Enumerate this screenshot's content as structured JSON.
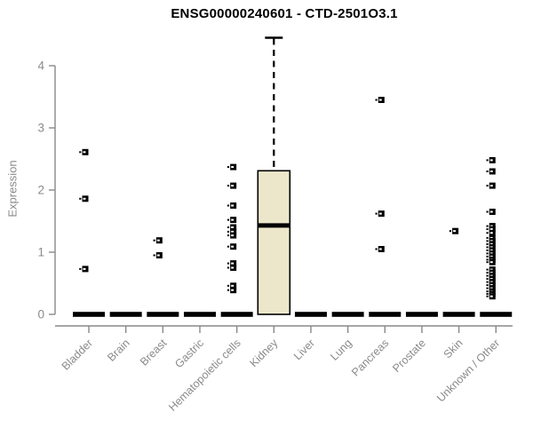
{
  "chart": {
    "title": "ENSG00000240601 - CTD-2501O3.1",
    "ylabel": "Expression"
  },
  "chart_data": {
    "type": "boxplot",
    "title": "ENSG00000240601 - CTD-2501O3.1",
    "xlabel": "",
    "ylabel": "Expression",
    "ylim": [
      0,
      4.6
    ],
    "yticks": [
      0,
      1,
      2,
      3,
      4
    ],
    "grid": false,
    "legend": false,
    "categories": [
      "Bladder",
      "Brain",
      "Breast",
      "Gastric",
      "Hematopoietic cells",
      "Kidney",
      "Liver",
      "Lung",
      "Pancreas",
      "Prostate",
      "Skin",
      "Unknown / Other"
    ],
    "series": [
      {
        "name": "Bladder",
        "q1": 0,
        "median": 0,
        "q3": 0,
        "whisker_low": 0,
        "whisker_high": 0,
        "outliers": [
          2.61,
          1.86,
          0.73
        ]
      },
      {
        "name": "Brain",
        "q1": 0,
        "median": 0,
        "q3": 0,
        "whisker_low": 0,
        "whisker_high": 0,
        "outliers": []
      },
      {
        "name": "Breast",
        "q1": 0,
        "median": 0,
        "q3": 0,
        "whisker_low": 0,
        "whisker_high": 0,
        "outliers": [
          1.19,
          0.95
        ]
      },
      {
        "name": "Gastric",
        "q1": 0,
        "median": 0,
        "q3": 0,
        "whisker_low": 0,
        "whisker_high": 0,
        "outliers": []
      },
      {
        "name": "Hematopoietic cells",
        "q1": 0,
        "median": 0,
        "q3": 0,
        "whisker_low": 0,
        "whisker_high": 0,
        "outliers": [
          2.37,
          2.07,
          1.75,
          1.52,
          1.4,
          1.33,
          1.27,
          1.09,
          0.82,
          0.75,
          0.46,
          0.39
        ]
      },
      {
        "name": "Kidney",
        "q1": 0,
        "median": 1.43,
        "q3": 2.31,
        "whisker_low": 0,
        "whisker_high": 4.45,
        "outliers": []
      },
      {
        "name": "Liver",
        "q1": 0,
        "median": 0,
        "q3": 0,
        "whisker_low": 0,
        "whisker_high": 0,
        "outliers": []
      },
      {
        "name": "Lung",
        "q1": 0,
        "median": 0,
        "q3": 0,
        "whisker_low": 0,
        "whisker_high": 0,
        "outliers": []
      },
      {
        "name": "Pancreas",
        "q1": 0,
        "median": 0,
        "q3": 0,
        "whisker_low": 0,
        "whisker_high": 0,
        "outliers": [
          3.45,
          1.62,
          1.05
        ]
      },
      {
        "name": "Prostate",
        "q1": 0,
        "median": 0,
        "q3": 0,
        "whisker_low": 0,
        "whisker_high": 0,
        "outliers": []
      },
      {
        "name": "Skin",
        "q1": 0,
        "median": 0,
        "q3": 0,
        "whisker_low": 0,
        "whisker_high": 0,
        "outliers": [
          1.34
        ]
      },
      {
        "name": "Unknown / Other",
        "q1": 0,
        "median": 0,
        "q3": 0,
        "whisker_low": 0,
        "whisker_high": 0,
        "outliers": [
          2.48,
          2.3,
          2.07,
          1.65,
          1.42,
          1.37,
          1.31,
          1.23,
          1.18,
          1.13,
          1.08,
          1.03,
          0.98,
          0.93,
          0.88,
          0.84,
          0.72,
          0.67,
          0.62,
          0.57,
          0.52,
          0.47,
          0.42,
          0.37,
          0.33,
          0.29
        ]
      }
    ],
    "colors": {
      "box_fill": "#ece7cb",
      "box_stroke": "#000000",
      "median": "#000000",
      "whisker": "#000000",
      "point": "#000000",
      "axis": "#888888",
      "tick_text": "#8a8a8a",
      "title": "#000000"
    }
  }
}
